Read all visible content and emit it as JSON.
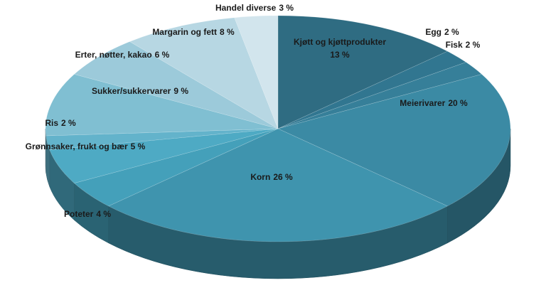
{
  "chart_data": {
    "type": "pie3d",
    "categories": [
      "Kjøtt og kjøttprodukter",
      "Egg",
      "Fisk",
      "Meierivarer",
      "Korn",
      "Poteter",
      "Grønnsaker, frukt og bær",
      "Ris",
      "Sukker/sukkervarer",
      "Erter, nøtter, kakao",
      "Margarin og fett",
      "Handel diverse"
    ],
    "values": [
      13,
      2,
      2,
      20,
      26,
      4,
      5,
      2,
      9,
      6,
      8,
      3
    ],
    "value_labels": [
      "13 %",
      "2 %",
      "2 %",
      "20 %",
      "26 %",
      "4 %",
      "5 %",
      "2 %",
      "9 %",
      "6 %",
      "8 %",
      "3 %"
    ],
    "colors": [
      "#2f6c82",
      "#317690",
      "#367f99",
      "#3b8aa4",
      "#3f94ae",
      "#44a0ba",
      "#4eaac4",
      "#63b3cb",
      "#80bfd2",
      "#9ccada",
      "#b7d7e3",
      "#d2e5ed"
    ]
  }
}
